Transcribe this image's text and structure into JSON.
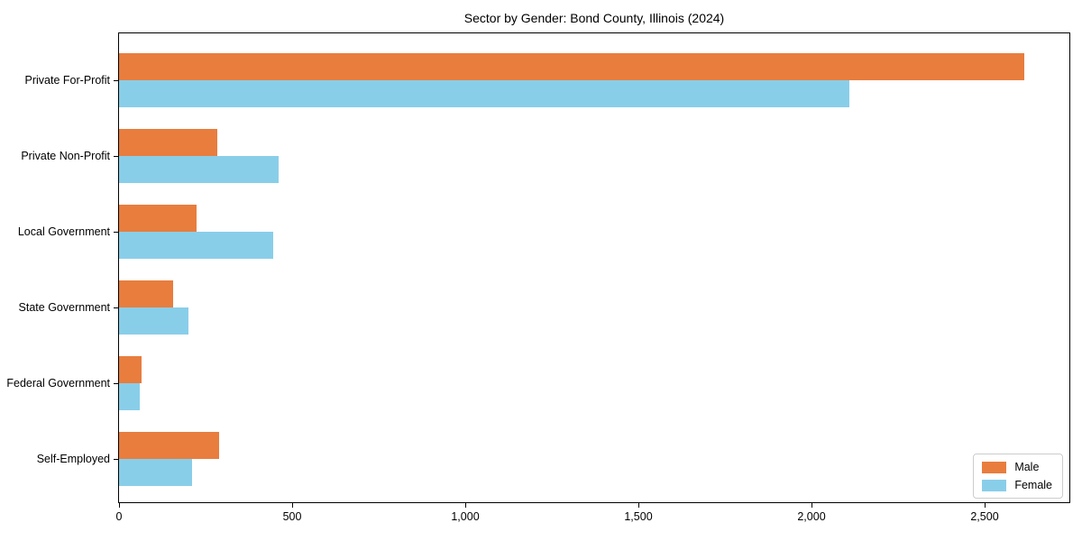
{
  "chart_data": {
    "type": "bar",
    "orientation": "horizontal",
    "title": "Sector by Gender: Bond County, Illinois (2024)",
    "categories": [
      "Private For-Profit",
      "Private Non-Profit",
      "Local Government",
      "State Government",
      "Federal Government",
      "Self-Employed"
    ],
    "series": [
      {
        "name": "Male",
        "color": "#e87d3e",
        "values": [
          2615,
          285,
          225,
          155,
          65,
          290
        ]
      },
      {
        "name": "Female",
        "color": "#89cee9",
        "values": [
          2110,
          460,
          445,
          200,
          60,
          210
        ]
      }
    ],
    "xlabel": "",
    "ylabel": "",
    "xlim": [
      0,
      2750
    ],
    "x_ticks": [
      0,
      500,
      1000,
      1500,
      2000,
      2500
    ],
    "x_tick_labels": [
      "0",
      "500",
      "1,000",
      "1,500",
      "2,000",
      "2,500"
    ],
    "grid": false,
    "legend_position": "lower right",
    "legend_labels": [
      "Male",
      "Female"
    ]
  },
  "colors": {
    "male_bar": "#e87d3e",
    "female_bar": "#89cee9",
    "axis": "#000000",
    "legend_border": "#cccccc",
    "background": "#ffffff"
  }
}
